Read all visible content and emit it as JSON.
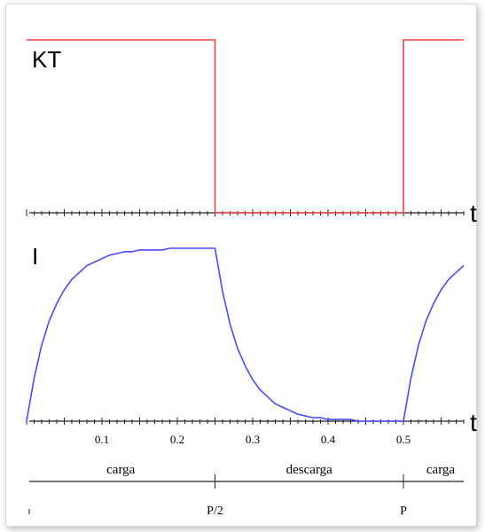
{
  "chart_data": {
    "type": "line",
    "xlim": [
      0,
      0.58
    ],
    "ylim": [
      0,
      1
    ],
    "minor_xticks": [
      0,
      0.01,
      0.02,
      0.03,
      0.04,
      0.05,
      0.06,
      0.07,
      0.08,
      0.09,
      0.1,
      0.11,
      0.12,
      0.13,
      0.14,
      0.15,
      0.16,
      0.17,
      0.18,
      0.19,
      0.2,
      0.21,
      0.22,
      0.23,
      0.24,
      0.25,
      0.26,
      0.27,
      0.28,
      0.29,
      0.3,
      0.31,
      0.32,
      0.33,
      0.34,
      0.35,
      0.36,
      0.37,
      0.38,
      0.39,
      0.4,
      0.41,
      0.42,
      0.43,
      0.44,
      0.45,
      0.46,
      0.47,
      0.48,
      0.49,
      0.5,
      0.51,
      0.52,
      0.53,
      0.54,
      0.55,
      0.56,
      0.57,
      0.58
    ],
    "xticks": [
      0.1,
      0.2,
      0.3,
      0.4,
      0.5
    ],
    "x_axis_label": "t",
    "panels": [
      {
        "label": "KT",
        "series": [
          {
            "color": "#f04040",
            "x": [
              0,
              0.25,
              0.25,
              0.5,
              0.5,
              0.58
            ],
            "values": [
              1,
              1,
              0,
              0,
              1,
              1
            ]
          }
        ]
      },
      {
        "label": "I",
        "series": [
          {
            "color": "#4a4aff",
            "x": [
              0,
              0.01,
              0.02,
              0.03,
              0.04,
              0.05,
              0.06,
              0.07,
              0.08,
              0.09,
              0.1,
              0.11,
              0.12,
              0.13,
              0.14,
              0.15,
              0.16,
              0.17,
              0.18,
              0.19,
              0.2,
              0.21,
              0.22,
              0.23,
              0.24,
              0.25,
              0.26,
              0.27,
              0.28,
              0.29,
              0.3,
              0.31,
              0.32,
              0.33,
              0.34,
              0.35,
              0.36,
              0.37,
              0.38,
              0.39,
              0.4,
              0.41,
              0.42,
              0.43,
              0.44,
              0.45,
              0.46,
              0.47,
              0.48,
              0.49,
              0.5,
              0.51,
              0.52,
              0.53,
              0.54,
              0.55,
              0.56,
              0.57,
              0.58
            ],
            "values": [
              0,
              0.25,
              0.44,
              0.58,
              0.68,
              0.76,
              0.82,
              0.86,
              0.9,
              0.92,
              0.94,
              0.96,
              0.97,
              0.98,
              0.98,
              0.99,
              0.99,
              0.99,
              0.99,
              1,
              1,
              1,
              1,
              1,
              1,
              1,
              0.75,
              0.56,
              0.42,
              0.32,
              0.24,
              0.18,
              0.14,
              0.1,
              0.08,
              0.06,
              0.04,
              0.03,
              0.02,
              0.02,
              0.01,
              0.01,
              0.01,
              0.01,
              0,
              0,
              0,
              0,
              0,
              0,
              0,
              0.25,
              0.44,
              0.58,
              0.68,
              0.76,
              0.82,
              0.86,
              0.9
            ]
          }
        ]
      }
    ],
    "phases": [
      {
        "label": "carga",
        "start": 0,
        "end": 0.25
      },
      {
        "label": "descarga",
        "start": 0.25,
        "end": 0.5
      },
      {
        "label": "carga",
        "start": 0.5,
        "end": 0.58
      }
    ],
    "period_ticks": [
      {
        "value": 0.25,
        "label": "P/2"
      },
      {
        "value": 0.5,
        "label": "P"
      }
    ]
  }
}
